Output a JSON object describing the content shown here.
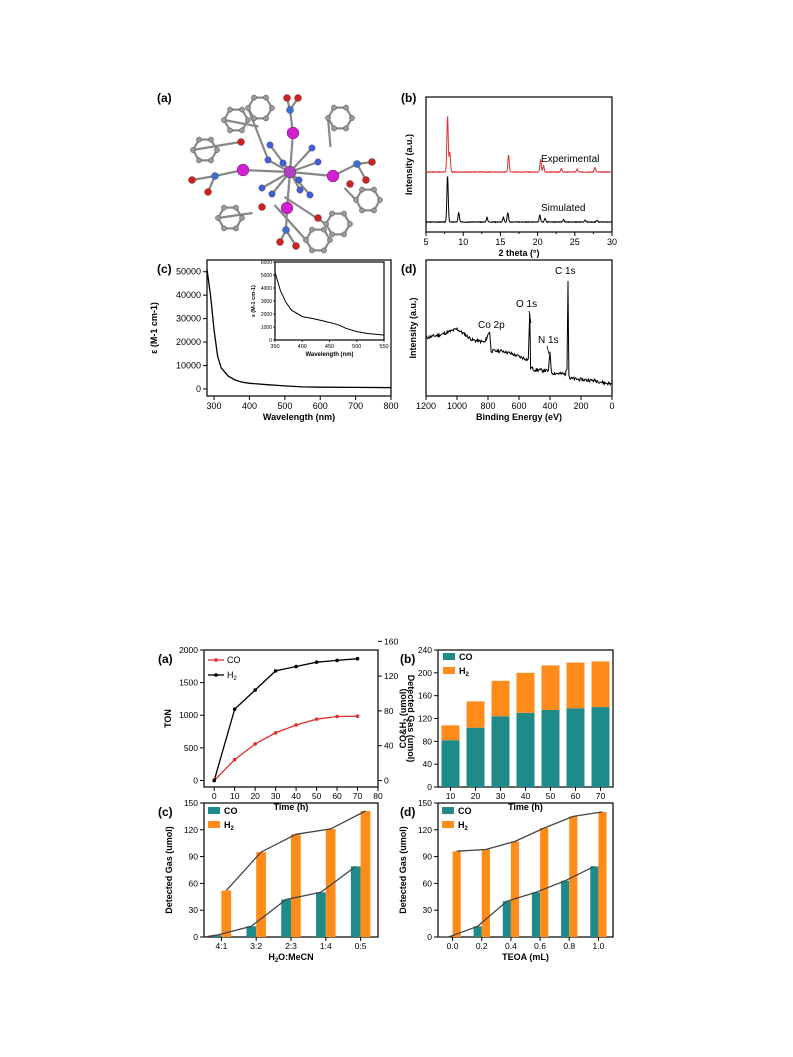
{
  "fig1": {
    "panel_a": {
      "label": "(a)"
    },
    "panel_b": {
      "label": "(b)",
      "chart_data": {
        "type": "line",
        "xlabel": "2 theta  (°)",
        "ylabel": "Intensity (a.u.)",
        "xlim": [
          5,
          30
        ],
        "xticks": [
          "5",
          "10",
          "15",
          "20",
          "25",
          "30"
        ],
        "series": [
          {
            "name": "Experimental",
            "color": "#e03030",
            "peaks": [
              [
                7.9,
                1.0
              ],
              [
                8.2,
                0.35
              ],
              [
                16.1,
                0.3
              ],
              [
                20.4,
                0.22
              ],
              [
                20.8,
                0.12
              ],
              [
                23.2,
                0.06
              ],
              [
                25.3,
                0.05
              ],
              [
                27.7,
                0.08
              ]
            ]
          },
          {
            "name": "Simulated",
            "color": "#000000",
            "peaks": [
              [
                7.9,
                1.0
              ],
              [
                9.4,
                0.2
              ],
              [
                13.2,
                0.1
              ],
              [
                15.4,
                0.1
              ],
              [
                16.0,
                0.2
              ],
              [
                20.3,
                0.15
              ],
              [
                21.0,
                0.08
              ],
              [
                23.5,
                0.05
              ],
              [
                26.4,
                0.04
              ],
              [
                28.0,
                0.04
              ]
            ]
          }
        ]
      }
    },
    "panel_c": {
      "label": "(c)",
      "chart_data": {
        "type": "line",
        "xlabel": "Wavelength (nm)",
        "ylabel": "ε (M-1 cm-1)",
        "xlim": [
          280,
          800
        ],
        "ylim": [
          -3000,
          55000
        ],
        "xticks": [
          "300",
          "400",
          "500",
          "600",
          "700",
          "800"
        ],
        "yticks": [
          "0",
          "10000",
          "20000",
          "30000",
          "40000",
          "50000"
        ],
        "x": [
          280,
          290,
          300,
          310,
          320,
          340,
          360,
          380,
          400,
          450,
          500,
          550,
          600,
          700,
          800
        ],
        "y": [
          51000,
          40000,
          25000,
          14000,
          9000,
          5500,
          3800,
          2900,
          2400,
          1800,
          1300,
          900,
          750,
          650,
          600
        ],
        "inset": {
          "xlabel": "Wavelength (nm)",
          "ylabel": "ε (M-1 cm-1)",
          "xlim": [
            350,
            550
          ],
          "ylim": [
            0,
            6000
          ],
          "xticks": [
            "350",
            "400",
            "450",
            "500",
            "550"
          ],
          "yticks": [
            "0",
            "1000",
            "2000",
            "3000",
            "4000",
            "5000",
            "6000"
          ],
          "x": [
            350,
            360,
            370,
            380,
            400,
            420,
            440,
            460,
            470,
            480,
            500,
            520,
            550
          ],
          "y": [
            5200,
            3800,
            2900,
            2300,
            1800,
            1650,
            1450,
            1250,
            1100,
            900,
            650,
            500,
            380
          ]
        }
      }
    },
    "panel_d": {
      "label": "(d)",
      "chart_data": {
        "type": "line",
        "xlabel": "Binding Energy (eV)",
        "ylabel": "Intensity (a.u.)",
        "xlim": [
          1200,
          0
        ],
        "xticks": [
          "1200",
          "1000",
          "800",
          "600",
          "400",
          "200",
          "0"
        ],
        "annotations": [
          "Co 2p",
          "O 1s",
          "N 1s",
          "C 1s"
        ],
        "x": [
          1200,
          1100,
          1000,
          950,
          900,
          820,
          790,
          780,
          700,
          600,
          540,
          531,
          525,
          500,
          410,
          400,
          390,
          300,
          290,
          284,
          278,
          270,
          200,
          100,
          50,
          0
        ],
        "y": [
          0.42,
          0.45,
          0.5,
          0.45,
          0.4,
          0.38,
          0.48,
          0.3,
          0.3,
          0.25,
          0.22,
          0.65,
          0.15,
          0.13,
          0.12,
          0.3,
          0.1,
          0.09,
          0.15,
          0.95,
          0.08,
          0.05,
          0.04,
          0.03,
          0.01,
          0.0
        ]
      }
    }
  },
  "fig2": {
    "panel_a": {
      "label": "(a)",
      "chart_data": {
        "type": "line",
        "xlabel": "Time (h)",
        "ylabel": "TON",
        "ylabel_right": "Detected Gas (umol)",
        "xlim": [
          -5,
          80
        ],
        "ylim": [
          -100,
          2000
        ],
        "ylim_right": [
          -7.5,
          150
        ],
        "xticks": [
          "0",
          "10",
          "20",
          "30",
          "40",
          "50",
          "60",
          "70",
          "80"
        ],
        "yticks": [
          "0",
          "500",
          "1000",
          "1500",
          "2000"
        ],
        "yticks_right": [
          "0",
          "40",
          "80",
          "120",
          "160"
        ],
        "x": [
          0,
          10,
          20,
          30,
          40,
          50,
          60,
          70
        ],
        "series": [
          {
            "name": "CO",
            "color": "#e03030",
            "axis": "left",
            "values": [
              0,
              320,
              560,
              730,
              850,
              940,
              980,
              985
            ]
          },
          {
            "name": "H2",
            "color": "#000000",
            "axis": "right",
            "values": [
              0,
              82,
              104,
              126,
              131,
              136,
              138,
              140
            ]
          }
        ],
        "legend": [
          "CO",
          "H2"
        ]
      }
    },
    "panel_b": {
      "label": "(b)",
      "chart_data": {
        "type": "bar",
        "stacked": true,
        "xlabel": "Time (h)",
        "ylabel": "CO&H2 (umol)",
        "ylim": [
          0,
          240
        ],
        "yticks": [
          "0",
          "40",
          "80",
          "120",
          "160",
          "200",
          "240"
        ],
        "categories": [
          "10",
          "20",
          "30",
          "40",
          "50",
          "60",
          "70"
        ],
        "series": [
          {
            "name": "CO",
            "color": "#1f8a8a",
            "values": [
              82,
              104,
              124,
              130,
              135,
              138,
              140
            ]
          },
          {
            "name": "H2",
            "color": "#ff8c1a",
            "values": [
              26,
              46,
              62,
              70,
              78,
              80,
              80
            ]
          }
        ]
      }
    },
    "panel_c": {
      "label": "(c)",
      "chart_data": {
        "type": "bar",
        "xlabel": "H2O:MeCN",
        "ylabel": "Detected Gas (umol)",
        "ylim": [
          0,
          150
        ],
        "yticks": [
          "0",
          "30",
          "60",
          "90",
          "120",
          "150"
        ],
        "categories": [
          "4:1",
          "3:2",
          "2:3",
          "1:4",
          "0:5"
        ],
        "series": [
          {
            "name": "CO",
            "color": "#1f8a8a",
            "values": [
              2,
              12,
              42,
              50,
              79
            ]
          },
          {
            "name": "H2",
            "color": "#ff8c1a",
            "values": [
              52,
              95,
              115,
              121,
              141
            ]
          }
        ]
      }
    },
    "panel_d": {
      "label": "(d)",
      "chart_data": {
        "type": "bar",
        "xlabel": "TEOA (mL)",
        "ylabel": "Detected Gas (umol)",
        "ylim": [
          0,
          150
        ],
        "yticks": [
          "0",
          "30",
          "60",
          "90",
          "120",
          "150"
        ],
        "categories": [
          "0.0",
          "0.2",
          "0.4",
          "0.6",
          "0.8",
          "1.0"
        ],
        "series": [
          {
            "name": "CO",
            "color": "#1f8a8a",
            "values": [
              0,
              12,
              40,
              50,
              63,
              79
            ]
          },
          {
            "name": "H2",
            "color": "#ff8c1a",
            "values": [
              96,
              98,
              107,
              122,
              135,
              140
            ]
          }
        ]
      }
    }
  }
}
